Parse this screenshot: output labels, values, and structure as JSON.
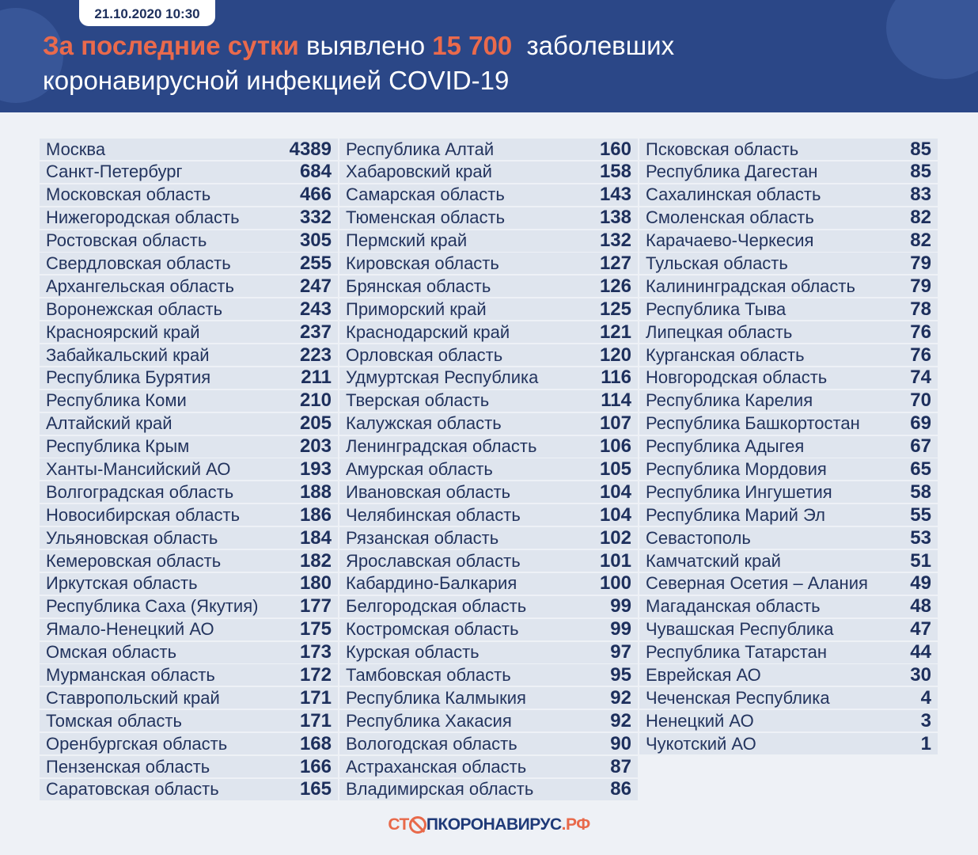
{
  "header": {
    "date": "21.10.2020 10:30",
    "title_part1": "За последние сутки",
    "title_part2": " выявлено ",
    "title_count": "15 700",
    "title_part3": "  заболевших",
    "title_line2": "коронавирусной инфекцией COVID-19"
  },
  "colors": {
    "header_bg": "#2b4787",
    "accent": "#ea6a4c",
    "row_bg": "#dfe5ee"
  },
  "columns": [
    [
      [
        "Москва",
        "4389"
      ],
      [
        "Санкт-Петербург",
        "684"
      ],
      [
        "Московская область",
        "466"
      ],
      [
        "Нижегородская область",
        "332"
      ],
      [
        "Ростовская область",
        "305"
      ],
      [
        "Свердловская область",
        "255"
      ],
      [
        "Архангельская область",
        "247"
      ],
      [
        "Воронежская область",
        "243"
      ],
      [
        "Красноярский край",
        "237"
      ],
      [
        "Забайкальский край",
        "223"
      ],
      [
        "Республика Бурятия",
        "211"
      ],
      [
        "Республика Коми",
        "210"
      ],
      [
        "Алтайский край",
        "205"
      ],
      [
        "Республика Крым",
        "203"
      ],
      [
        "Ханты-Мансийский АО",
        "193"
      ],
      [
        "Волгоградская область",
        "188"
      ],
      [
        "Новосибирская область",
        "186"
      ],
      [
        "Ульяновская область",
        "184"
      ],
      [
        "Кемеровская область",
        "182"
      ],
      [
        "Иркутская область",
        "180"
      ],
      [
        "Республика Саха (Якутия)",
        "177"
      ],
      [
        "Ямало-Ненецкий АО",
        "175"
      ],
      [
        "Омская область",
        "173"
      ],
      [
        "Мурманская область",
        "172"
      ],
      [
        "Ставропольский край",
        "171"
      ],
      [
        "Томская область",
        "171"
      ],
      [
        "Оренбургская область",
        "168"
      ],
      [
        "Пензенская область",
        "166"
      ],
      [
        "Саратовская область",
        "165"
      ]
    ],
    [
      [
        "Республика  Алтай",
        "160"
      ],
      [
        "Хабаровский край",
        "158"
      ],
      [
        "Самарская область",
        "143"
      ],
      [
        "Тюменская область",
        "138"
      ],
      [
        "Пермский край",
        "132"
      ],
      [
        "Кировская область",
        "127"
      ],
      [
        "Брянская область",
        "126"
      ],
      [
        "Приморский край",
        "125"
      ],
      [
        "Краснодарский край",
        "121"
      ],
      [
        "Орловская область",
        "120"
      ],
      [
        "Удмуртская Республика",
        "116"
      ],
      [
        "Тверская область",
        "114"
      ],
      [
        "Калужская область",
        "107"
      ],
      [
        "Ленинградская область",
        "106"
      ],
      [
        "Амурская область",
        "105"
      ],
      [
        "Ивановская область",
        "104"
      ],
      [
        "Челябинская область",
        "104"
      ],
      [
        "Рязанская область",
        "102"
      ],
      [
        "Ярославская область",
        "101"
      ],
      [
        "Кабардино-Балкария",
        "100"
      ],
      [
        "Белгородская область",
        "99"
      ],
      [
        "Костромская область",
        "99"
      ],
      [
        "Курская область",
        "97"
      ],
      [
        "Тамбовская область",
        "95"
      ],
      [
        "Республика Калмыкия",
        "92"
      ],
      [
        "Республика Хакасия",
        "92"
      ],
      [
        "Вологодская область",
        "90"
      ],
      [
        "Астраханская область",
        "87"
      ],
      [
        "Владимирская область",
        "86"
      ]
    ],
    [
      [
        "Псковская область",
        "85"
      ],
      [
        "Республика Дагестан",
        "85"
      ],
      [
        "Сахалинская область",
        "83"
      ],
      [
        "Смоленская область",
        "82"
      ],
      [
        "Карачаево-Черкесия",
        "82"
      ],
      [
        "Тульская область",
        "79"
      ],
      [
        "Калининградская область",
        "79"
      ],
      [
        "Республика Тыва",
        "78"
      ],
      [
        "Липецкая область",
        "76"
      ],
      [
        "Курганская область",
        "76"
      ],
      [
        "Новгородская область",
        "74"
      ],
      [
        "Республика Карелия",
        "70"
      ],
      [
        "Республика Башкортостан",
        "69"
      ],
      [
        "Республика Адыгея",
        "67"
      ],
      [
        "Республика Мордовия",
        "65"
      ],
      [
        "Республика Ингушетия",
        "58"
      ],
      [
        "Республика Марий Эл",
        "55"
      ],
      [
        "Севастополь",
        "53"
      ],
      [
        "Камчатский край",
        "51"
      ],
      [
        "Северная Осетия – Алания",
        "49"
      ],
      [
        "Магаданская область",
        "48"
      ],
      [
        "Чувашская Республика",
        "47"
      ],
      [
        "Республика Татарстан",
        "44"
      ],
      [
        "Еврейская АО",
        "30"
      ],
      [
        "Чеченская Республика",
        "4"
      ],
      [
        "Ненецкий АО",
        "3"
      ],
      [
        "Чукотский АО",
        "1"
      ]
    ]
  ],
  "footer": {
    "logo_part1": "СТ",
    "logo_part2": "ПКОРОНАВИРУС",
    "logo_part3": ".РФ"
  }
}
